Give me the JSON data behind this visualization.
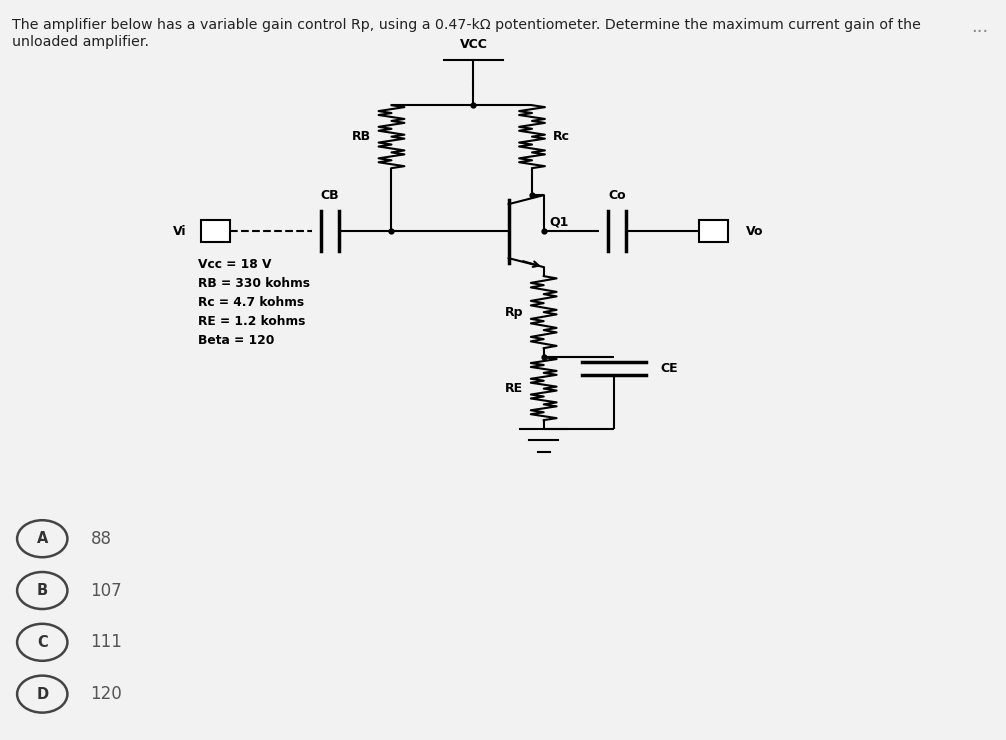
{
  "title_text": "The amplifier below has a variable gain control Rp, using a 0.47-kΩ potentiometer. Determine the maximum current gain of the\nunloaded amplifier.",
  "bg_color": "#f2f2f2",
  "circuit_bg": "#e8e8e8",
  "inner_bg": "#ffffff",
  "options": [
    {
      "label": "A",
      "value": "88"
    },
    {
      "label": "B",
      "value": "107"
    },
    {
      "label": "C",
      "value": "111"
    },
    {
      "label": "D",
      "value": "120"
    }
  ],
  "params_text": "Vcc = 18 V\nRB = 330 kohms\nRc = 4.7 kohms\nRE = 1.2 kohms\nBeta = 120",
  "vcc_label": "VCC",
  "rb_label": "RB",
  "rc_label": "Rc",
  "cb_label": "CB",
  "vi_label": "Vi",
  "q1_label": "Q1",
  "co_label": "Co",
  "vo_label": "Vo",
  "rp_label": "Rp",
  "re_label": "RE",
  "ce_label": "CE",
  "dots_label": "..."
}
